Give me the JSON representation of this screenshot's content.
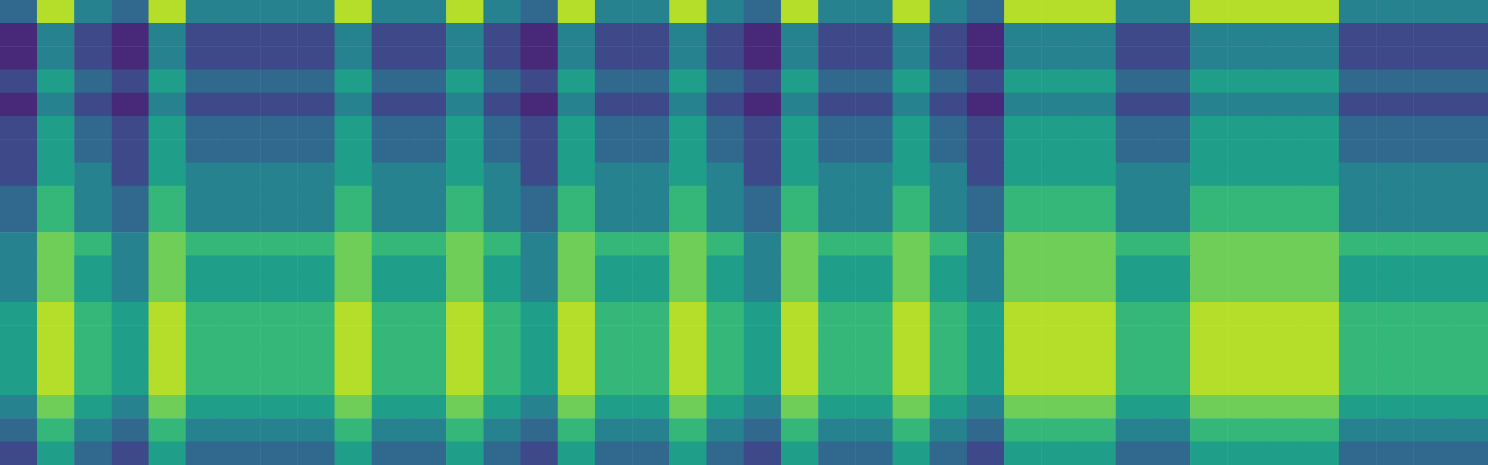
{
  "chart_data": {
    "type": "heatmap",
    "tick_labels": false,
    "zlim": [
      0,
      9
    ],
    "z": [
      [
        3,
        8,
        4,
        3,
        8,
        4,
        4,
        4,
        4,
        8,
        4,
        4,
        8,
        4,
        3,
        8,
        4,
        4,
        8,
        4,
        3,
        8,
        4,
        4,
        8,
        4,
        3,
        8,
        8,
        8,
        4,
        4,
        8,
        8,
        8,
        8,
        4,
        4,
        4,
        4
      ],
      [
        1,
        4,
        2,
        1,
        4,
        2,
        2,
        2,
        2,
        4,
        2,
        2,
        4,
        2,
        1,
        4,
        2,
        2,
        4,
        2,
        1,
        4,
        2,
        2,
        4,
        2,
        1,
        4,
        4,
        4,
        2,
        2,
        4,
        4,
        4,
        4,
        2,
        2,
        2,
        2
      ],
      [
        1,
        4,
        2,
        1,
        4,
        2,
        2,
        2,
        2,
        4,
        2,
        2,
        4,
        2,
        1,
        4,
        2,
        2,
        4,
        2,
        1,
        4,
        2,
        2,
        4,
        2,
        1,
        4,
        4,
        4,
        2,
        2,
        4,
        4,
        4,
        4,
        2,
        2,
        2,
        2
      ],
      [
        2,
        5,
        3,
        2,
        5,
        3,
        3,
        3,
        3,
        5,
        3,
        3,
        5,
        3,
        2,
        5,
        3,
        3,
        5,
        3,
        2,
        5,
        3,
        3,
        5,
        3,
        2,
        5,
        5,
        5,
        3,
        3,
        5,
        5,
        5,
        5,
        3,
        3,
        3,
        3
      ],
      [
        1,
        4,
        2,
        1,
        4,
        2,
        2,
        2,
        2,
        4,
        2,
        2,
        4,
        2,
        1,
        4,
        2,
        2,
        4,
        2,
        1,
        4,
        2,
        2,
        4,
        2,
        1,
        4,
        4,
        4,
        2,
        2,
        4,
        4,
        4,
        4,
        2,
        2,
        2,
        2
      ],
      [
        2,
        5,
        3,
        2,
        5,
        3,
        3,
        3,
        3,
        5,
        3,
        3,
        5,
        3,
        2,
        5,
        3,
        3,
        5,
        3,
        2,
        5,
        3,
        3,
        5,
        3,
        2,
        5,
        5,
        5,
        3,
        3,
        5,
        5,
        5,
        5,
        3,
        3,
        3,
        3
      ],
      [
        2,
        5,
        3,
        2,
        5,
        3,
        3,
        3,
        3,
        5,
        3,
        3,
        5,
        3,
        2,
        5,
        3,
        3,
        5,
        3,
        2,
        5,
        3,
        3,
        5,
        3,
        2,
        5,
        5,
        5,
        3,
        3,
        5,
        5,
        5,
        5,
        3,
        3,
        3,
        3
      ],
      [
        2,
        5,
        4,
        2,
        5,
        4,
        4,
        4,
        4,
        5,
        4,
        4,
        5,
        4,
        2,
        5,
        4,
        4,
        5,
        4,
        2,
        5,
        4,
        4,
        5,
        4,
        2,
        5,
        5,
        5,
        4,
        4,
        5,
        5,
        5,
        5,
        4,
        4,
        4,
        4
      ],
      [
        3,
        6,
        4,
        3,
        6,
        4,
        4,
        4,
        4,
        6,
        4,
        4,
        6,
        4,
        3,
        6,
        4,
        4,
        6,
        4,
        3,
        6,
        4,
        4,
        6,
        4,
        3,
        6,
        6,
        6,
        4,
        4,
        6,
        6,
        6,
        6,
        4,
        4,
        4,
        4
      ],
      [
        3,
        6,
        4,
        3,
        6,
        4,
        4,
        4,
        4,
        6,
        4,
        4,
        6,
        4,
        3,
        6,
        4,
        4,
        6,
        4,
        3,
        6,
        4,
        4,
        6,
        4,
        3,
        6,
        6,
        6,
        4,
        4,
        6,
        6,
        6,
        6,
        4,
        4,
        4,
        4
      ],
      [
        4,
        7,
        6,
        4,
        7,
        6,
        6,
        6,
        6,
        7,
        6,
        6,
        7,
        6,
        4,
        7,
        6,
        6,
        7,
        6,
        4,
        7,
        6,
        6,
        7,
        6,
        4,
        7,
        7,
        7,
        6,
        6,
        7,
        7,
        7,
        7,
        6,
        6,
        6,
        6
      ],
      [
        4,
        7,
        5,
        4,
        7,
        5,
        5,
        5,
        5,
        7,
        5,
        5,
        7,
        5,
        4,
        7,
        5,
        5,
        7,
        5,
        4,
        7,
        5,
        5,
        7,
        5,
        4,
        7,
        7,
        7,
        5,
        5,
        7,
        7,
        7,
        7,
        5,
        5,
        5,
        5
      ],
      [
        4,
        7,
        5,
        4,
        7,
        5,
        5,
        5,
        5,
        7,
        5,
        5,
        7,
        5,
        4,
        7,
        5,
        5,
        7,
        5,
        4,
        7,
        5,
        5,
        7,
        5,
        4,
        7,
        7,
        7,
        5,
        5,
        7,
        7,
        7,
        7,
        5,
        5,
        5,
        5
      ],
      [
        5,
        8,
        6,
        5,
        8,
        6,
        6,
        6,
        6,
        8,
        6,
        6,
        8,
        6,
        5,
        8,
        6,
        6,
        8,
        6,
        5,
        8,
        6,
        6,
        8,
        6,
        5,
        8,
        8,
        8,
        6,
        6,
        8,
        8,
        8,
        8,
        6,
        6,
        6,
        6
      ],
      [
        5,
        8,
        6,
        5,
        8,
        6,
        6,
        6,
        6,
        8,
        6,
        6,
        8,
        6,
        5,
        8,
        6,
        6,
        8,
        6,
        5,
        8,
        6,
        6,
        8,
        6,
        5,
        8,
        8,
        8,
        6,
        6,
        8,
        8,
        8,
        8,
        6,
        6,
        6,
        6
      ],
      [
        5,
        8,
        6,
        5,
        8,
        6,
        6,
        6,
        6,
        8,
        6,
        6,
        8,
        6,
        5,
        8,
        6,
        6,
        8,
        6,
        5,
        8,
        6,
        6,
        8,
        6,
        5,
        8,
        8,
        8,
        6,
        6,
        8,
        8,
        8,
        8,
        6,
        6,
        6,
        6
      ],
      [
        5,
        8,
        6,
        5,
        8,
        6,
        6,
        6,
        6,
        8,
        6,
        6,
        8,
        6,
        5,
        8,
        6,
        6,
        8,
        6,
        5,
        8,
        6,
        6,
        8,
        6,
        5,
        8,
        8,
        8,
        6,
        6,
        8,
        8,
        8,
        8,
        6,
        6,
        6,
        6
      ],
      [
        4,
        7,
        5,
        4,
        7,
        5,
        5,
        5,
        5,
        7,
        5,
        5,
        7,
        5,
        4,
        7,
        5,
        5,
        7,
        5,
        4,
        7,
        5,
        5,
        7,
        5,
        4,
        7,
        7,
        7,
        5,
        5,
        7,
        7,
        7,
        7,
        5,
        5,
        5,
        5
      ],
      [
        3,
        6,
        4,
        3,
        6,
        4,
        4,
        4,
        4,
        6,
        4,
        4,
        6,
        4,
        3,
        6,
        4,
        4,
        6,
        4,
        3,
        6,
        4,
        4,
        6,
        4,
        3,
        6,
        6,
        6,
        4,
        4,
        6,
        6,
        6,
        6,
        4,
        4,
        4,
        4
      ],
      [
        2,
        5,
        3,
        2,
        5,
        3,
        3,
        3,
        3,
        5,
        3,
        3,
        5,
        3,
        2,
        5,
        3,
        3,
        5,
        3,
        2,
        5,
        3,
        3,
        5,
        3,
        2,
        5,
        5,
        5,
        3,
        3,
        5,
        5,
        5,
        5,
        3,
        3,
        3,
        3
      ]
    ]
  }
}
